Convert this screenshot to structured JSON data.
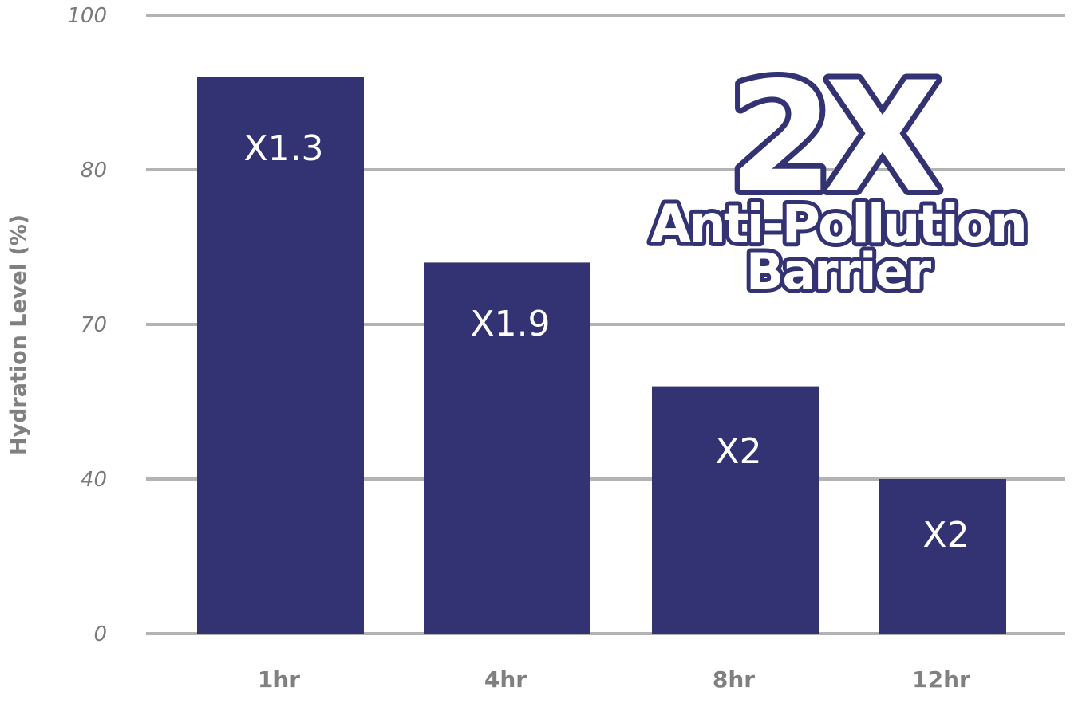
{
  "chart_data": {
    "type": "bar",
    "title": "",
    "xlabel": "",
    "ylabel": "Hydration Level (%)",
    "categories": [
      "1hr",
      "4hr",
      "8hr",
      "12hr"
    ],
    "values": [
      92,
      74,
      58,
      40
    ],
    "bar_labels": [
      "X1.3",
      "X1.9",
      "X2",
      "X2"
    ],
    "y_ticks": [
      0,
      40,
      70,
      80,
      100
    ],
    "y_tick_labels": [
      "0",
      "40",
      "70",
      "80",
      "100"
    ],
    "ylim": [
      0,
      100
    ],
    "grid": true,
    "legend": "none",
    "annotation": {
      "headline": "2X",
      "line1": "Anti-Pollution",
      "line2": "Barrier"
    },
    "colors": {
      "bar": "#333374",
      "grid": "#b3b3b3",
      "tick_text": "#7a7a7a",
      "label_text": "#808080"
    }
  }
}
